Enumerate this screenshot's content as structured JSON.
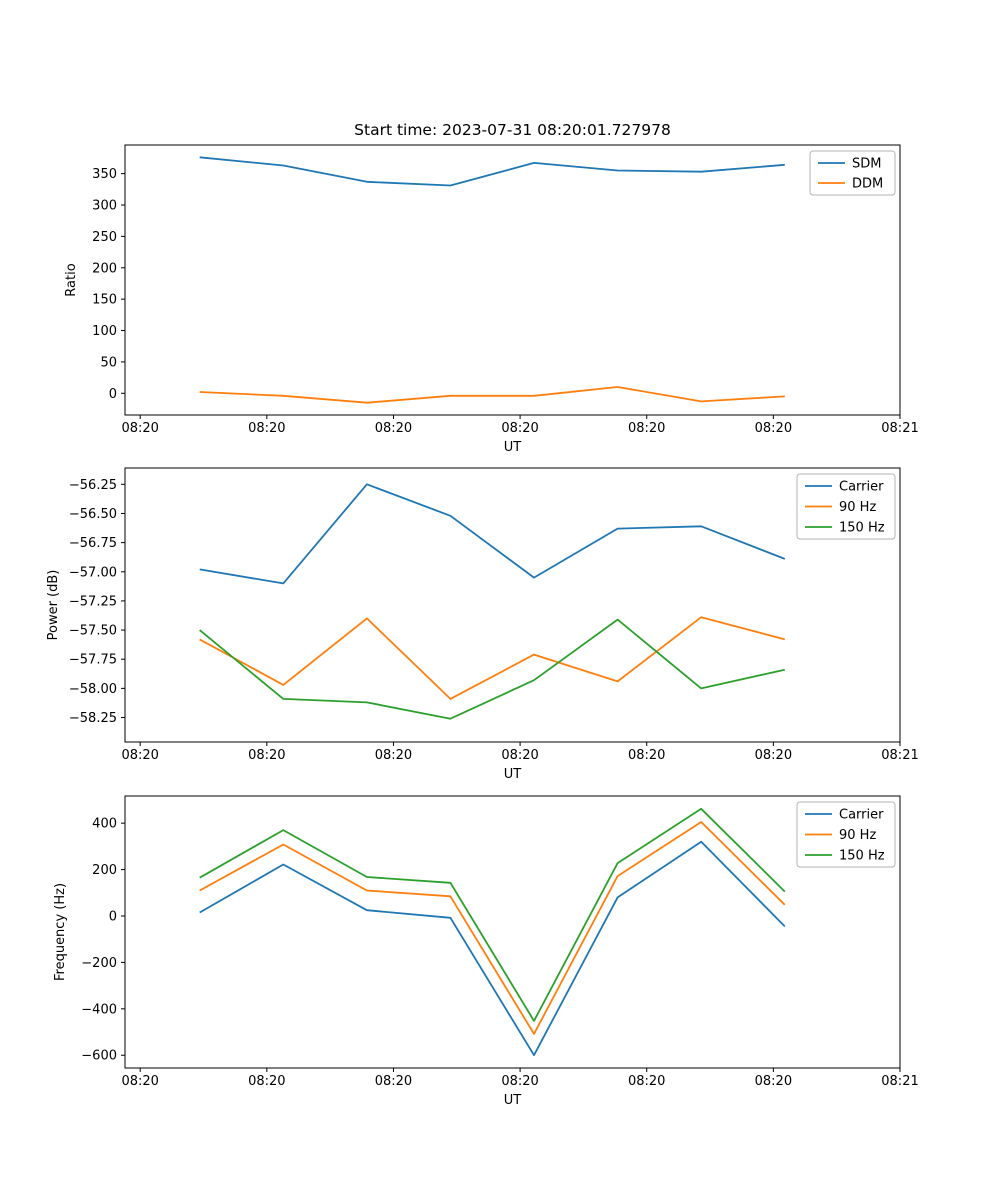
{
  "figure": {
    "title": "Start time: 2023-07-31 08:20:01.727978",
    "background_color": "#ffffff",
    "palette": {
      "blue": "#1f77b4",
      "orange": "#ff7f0e",
      "green": "#2ca02c"
    }
  },
  "chart_data": [
    {
      "type": "line",
      "title": "",
      "xlabel": "UT",
      "ylabel": "Ratio",
      "grid": false,
      "legend_position": "upper right",
      "legend": [
        "SDM",
        "DDM"
      ],
      "x_seconds_after_0820": [
        4.7,
        11.3,
        17.9,
        24.5,
        31.1,
        37.7,
        44.3,
        50.9
      ],
      "xlim_seconds": [
        -1.2,
        60.0
      ],
      "ylim": [
        -34.6,
        395.6
      ],
      "xtick_seconds": [
        0,
        10,
        20,
        30,
        40,
        50,
        60
      ],
      "xtick_labels": [
        "08:20",
        "08:20",
        "08:20",
        "08:20",
        "08:20",
        "08:20",
        "08:21"
      ],
      "ytick_values": [
        0,
        50,
        100,
        150,
        200,
        250,
        300,
        350
      ],
      "ytick_labels": [
        "0",
        "50",
        "100",
        "150",
        "200",
        "250",
        "300",
        "350"
      ],
      "series": [
        {
          "name": "SDM",
          "color": "#1f77b4",
          "values": [
            376,
            363,
            337,
            331,
            367,
            355,
            353,
            364
          ]
        },
        {
          "name": "DDM",
          "color": "#ff7f0e",
          "values": [
            2,
            -4,
            -15,
            -4,
            -4,
            10,
            -13,
            -5
          ]
        }
      ]
    },
    {
      "type": "line",
      "title": "",
      "xlabel": "UT",
      "ylabel": "Power (dB)",
      "grid": false,
      "legend_position": "upper right",
      "legend": [
        "Carrier",
        "90 Hz",
        "150 Hz"
      ],
      "x_seconds_after_0820": [
        4.7,
        11.3,
        17.9,
        24.5,
        31.1,
        37.7,
        44.3,
        50.9
      ],
      "xlim_seconds": [
        -1.2,
        60.0
      ],
      "ylim": [
        -58.46,
        -56.11
      ],
      "xtick_seconds": [
        0,
        10,
        20,
        30,
        40,
        50,
        60
      ],
      "xtick_labels": [
        "08:20",
        "08:20",
        "08:20",
        "08:20",
        "08:20",
        "08:20",
        "08:21"
      ],
      "ytick_values": [
        -56.25,
        -56.5,
        -56.75,
        -57.0,
        -57.25,
        -57.5,
        -57.75,
        -58.0,
        -58.25
      ],
      "ytick_labels": [
        "−56.25",
        "−56.50",
        "−56.75",
        "−57.00",
        "−57.25",
        "−57.50",
        "−57.75",
        "−58.00",
        "−58.25"
      ],
      "series": [
        {
          "name": "Carrier",
          "color": "#1f77b4",
          "values": [
            -56.98,
            -57.1,
            -56.25,
            -56.52,
            -57.05,
            -56.63,
            -56.61,
            -56.89
          ]
        },
        {
          "name": "90 Hz",
          "color": "#ff7f0e",
          "values": [
            -57.58,
            -57.97,
            -57.4,
            -58.09,
            -57.71,
            -57.94,
            -57.39,
            -57.58
          ]
        },
        {
          "name": "150 Hz",
          "color": "#2ca02c",
          "values": [
            -57.5,
            -58.09,
            -58.12,
            -58.26,
            -57.93,
            -57.41,
            -58.0,
            -57.84
          ]
        }
      ]
    },
    {
      "type": "line",
      "title": "",
      "xlabel": "UT",
      "ylabel": "Frequency (Hz)",
      "grid": false,
      "legend_position": "upper right",
      "legend": [
        "Carrier",
        "90 Hz",
        "150 Hz"
      ],
      "x_seconds_after_0820": [
        4.7,
        11.3,
        17.9,
        24.5,
        31.1,
        37.7,
        44.3,
        50.9
      ],
      "xlim_seconds": [
        -1.2,
        60.0
      ],
      "ylim": [
        -655,
        517
      ],
      "xtick_seconds": [
        0,
        10,
        20,
        30,
        40,
        50,
        60
      ],
      "xtick_labels": [
        "08:20",
        "08:20",
        "08:20",
        "08:20",
        "08:20",
        "08:20",
        "08:21"
      ],
      "ytick_values": [
        400,
        200,
        0,
        -200,
        -400,
        -600
      ],
      "ytick_labels": [
        "400",
        "200",
        "0",
        "−200",
        "−400",
        "−600"
      ],
      "series": [
        {
          "name": "Carrier",
          "color": "#1f77b4",
          "values": [
            15,
            222,
            25,
            -8,
            -600,
            80,
            320,
            -45
          ]
        },
        {
          "name": "90 Hz",
          "color": "#ff7f0e",
          "values": [
            110,
            308,
            110,
            85,
            -508,
            172,
            405,
            48
          ]
        },
        {
          "name": "150 Hz",
          "color": "#2ca02c",
          "values": [
            165,
            370,
            168,
            143,
            -452,
            228,
            462,
            105
          ]
        }
      ]
    }
  ]
}
